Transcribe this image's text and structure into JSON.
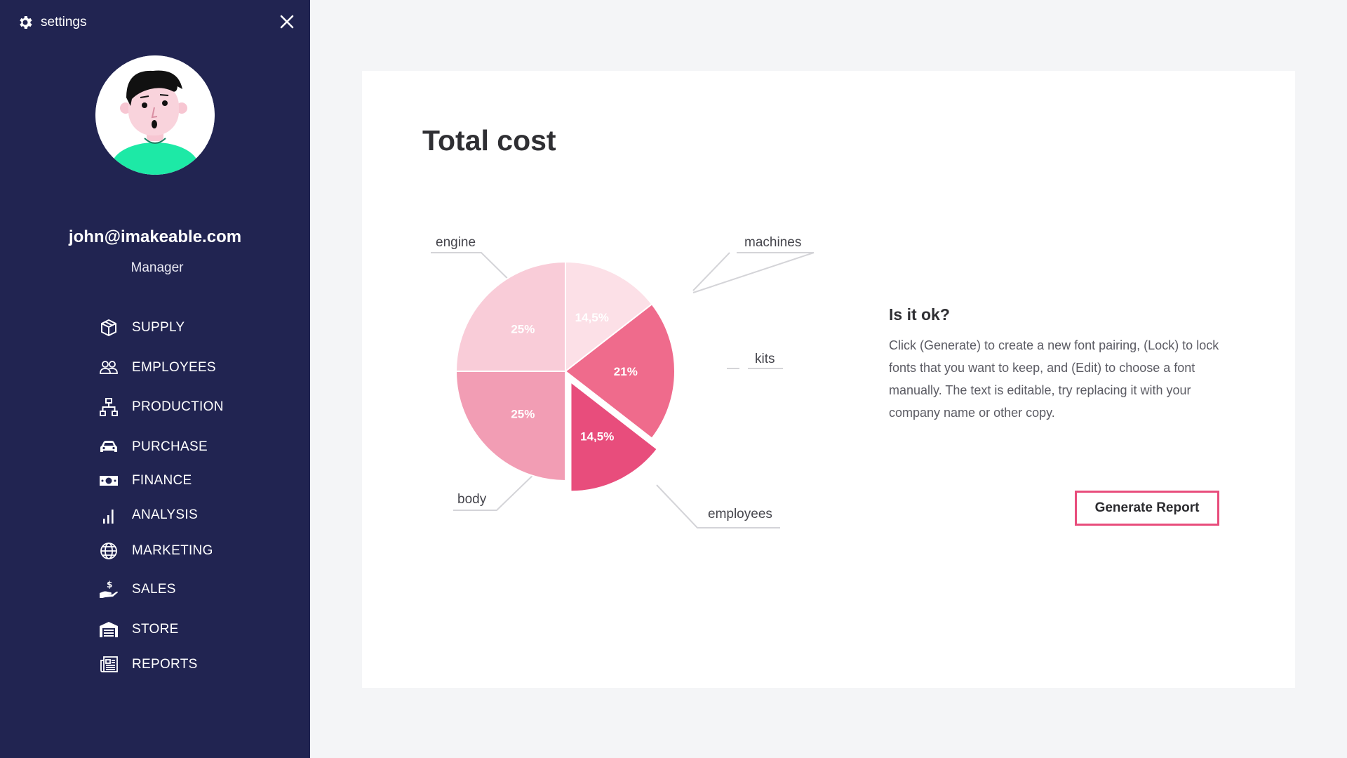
{
  "sidebar": {
    "settings_label": "settings",
    "settings_icon": "gear-icon",
    "close_icon": "close-icon",
    "user": {
      "email": "john@imakeable.com",
      "role": "Manager"
    },
    "items": [
      {
        "label": "SUPPLY",
        "icon": "box-icon"
      },
      {
        "label": "EMPLOYEES",
        "icon": "users-icon"
      },
      {
        "label": "PRODUCTION",
        "icon": "sitemap-icon"
      },
      {
        "label": "PURCHASE",
        "icon": "car-icon"
      },
      {
        "label": "FINANCE",
        "icon": "banknote-icon"
      },
      {
        "label": "ANALYSIS",
        "icon": "bar-chart-icon"
      },
      {
        "label": "MARKETING",
        "icon": "globe-icon"
      },
      {
        "label": "SALES",
        "icon": "hand-dollar-icon"
      },
      {
        "label": "STORE",
        "icon": "store-icon"
      },
      {
        "label": "REPORTS",
        "icon": "newspaper-icon"
      }
    ]
  },
  "main": {
    "title": "Total cost",
    "info": {
      "title": "Is it ok?",
      "text": "Click (Generate) to create a new font pairing, (Lock) to lock fonts that you want to keep, and (Edit) to choose a font manually. The text is editable, try replacing it with your company name or other copy."
    },
    "generate_button": "Generate Report"
  },
  "chart_data": {
    "type": "pie",
    "title": "Total cost",
    "slices": [
      {
        "label": "machines",
        "value": 14.5,
        "value_label": "14,5%",
        "color": "#fce0e7",
        "exploded": false
      },
      {
        "label": "kits",
        "value": 21,
        "value_label": "21%",
        "color": "#ef6b8c",
        "exploded": false
      },
      {
        "label": "employees",
        "value": 14.5,
        "value_label": "14,5%",
        "color": "#e84d7c",
        "exploded": true
      },
      {
        "label": "body",
        "value": 25,
        "value_label": "25%",
        "color": "#f29db4",
        "exploded": false
      },
      {
        "label": "engine",
        "value": 25,
        "value_label": "25%",
        "color": "#f9ccd8",
        "exploded": false
      }
    ],
    "legend": "callout labels around pie"
  },
  "colors": {
    "sidebar_bg": "#212451",
    "accent": "#e84d7c",
    "page_bg": "#f4f5f7",
    "avatar_shirt": "#1de9a6"
  }
}
